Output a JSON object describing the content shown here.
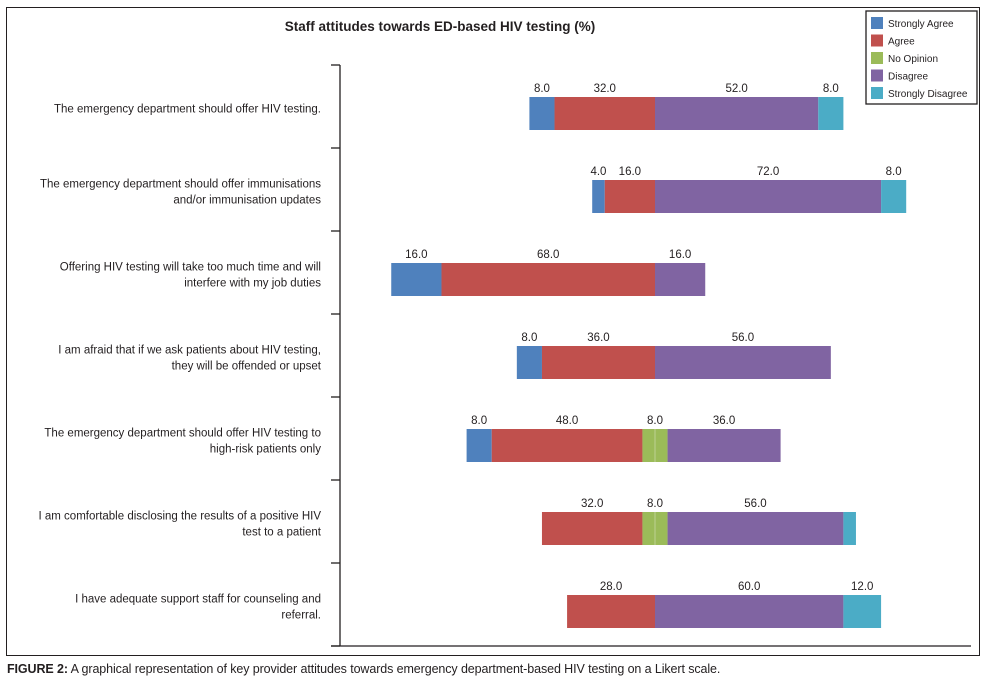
{
  "chart_data": {
    "type": "bar",
    "subtype": "diverging-stacked-horizontal",
    "title": "Staff attitudes towards ED-based HIV testing (%)",
    "xlabel": "",
    "ylabel": "",
    "unit": "%",
    "center": "No Opinion split evenly across the neutral midline",
    "legend_position": "top-right",
    "grid": false,
    "series_order": [
      "Strongly Agree",
      "Agree",
      "No Opinion",
      "Disagree",
      "Strongly Disagree"
    ],
    "colors": {
      "Strongly Agree": "#4F81BD",
      "Agree": "#C0504D",
      "No Opinion": "#9BBB59",
      "Disagree": "#8064A2",
      "Strongly Disagree": "#4BACC6"
    },
    "categories": [
      "The emergency department should offer HIV testing.",
      "The emergency department should offer immunisations and/or immunisation updates",
      "Offering HIV testing will take too much time and will interfere with my job duties",
      "I am afraid that if we ask patients about HIV testing, they will be offended or upset",
      "The emergency department should offer HIV testing to high-risk patients only",
      "I am comfortable disclosing the results of a positive HIV test to a patient",
      "I have adequate support staff for counseling and referral."
    ],
    "category_lines": [
      [
        "The emergency department should offer HIV testing."
      ],
      [
        "The emergency department should offer immunisations",
        "and/or immunisation updates"
      ],
      [
        "Offering HIV testing will take too much time and will",
        "interfere with my job duties"
      ],
      [
        "I am afraid that if we ask patients about HIV testing,",
        "they will be offended or upset"
      ],
      [
        "The emergency department should offer HIV testing to",
        "high-risk patients only"
      ],
      [
        "I am comfortable disclosing the results of a positive HIV",
        "test to a patient"
      ],
      [
        "I have adequate support staff for counseling and",
        "referral."
      ]
    ],
    "series": [
      {
        "name": "Strongly Agree",
        "values": [
          8.0,
          4.0,
          16.0,
          8.0,
          8.0,
          0.0,
          0.0
        ]
      },
      {
        "name": "Agree",
        "values": [
          32.0,
          16.0,
          68.0,
          36.0,
          48.0,
          32.0,
          28.0
        ]
      },
      {
        "name": "No Opinion",
        "values": [
          0.0,
          0.0,
          0.0,
          0.0,
          8.0,
          8.0,
          0.0
        ]
      },
      {
        "name": "Disagree",
        "values": [
          52.0,
          72.0,
          16.0,
          56.0,
          36.0,
          56.0,
          60.0
        ]
      },
      {
        "name": "Strongly Disagree",
        "values": [
          8.0,
          8.0,
          0.0,
          0.0,
          0.0,
          4.0,
          12.0
        ]
      }
    ],
    "data_labels": [
      [
        "8.0",
        "32.0",
        null,
        "52.0",
        "8.0"
      ],
      [
        "4.0",
        "16.0",
        null,
        "72.0",
        "8.0"
      ],
      [
        "16.0",
        "68.0",
        null,
        "16.0",
        null
      ],
      [
        "8.0",
        "36.0",
        null,
        "56.0",
        null
      ],
      [
        "8.0",
        "48.0",
        "8.0",
        "36.0",
        null
      ],
      [
        null,
        "32.0",
        "8.0",
        "56.0",
        null
      ],
      [
        null,
        "28.0",
        null,
        "60.0",
        "12.0"
      ]
    ]
  },
  "caption": {
    "label": "FIGURE 2:",
    "text": " A graphical representation of key provider attitudes towards emergency department-based HIV testing on a Likert scale."
  }
}
